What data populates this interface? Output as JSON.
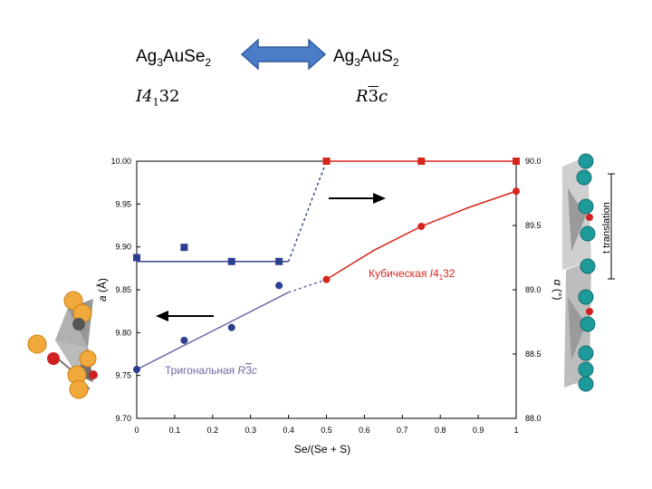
{
  "header": {
    "left_formula": {
      "base": "Ag",
      "sub1": "3",
      "mid": "AuSe",
      "sub2": "2"
    },
    "right_formula": {
      "base": "Ag",
      "sub1": "3",
      "mid": "AuS",
      "sub2": "2"
    },
    "left_spacegroup": {
      "pre": "I4",
      "sub": "1",
      "post": "32"
    },
    "right_spacegroup": {
      "pre": "R",
      "bar": "3",
      "post": "c"
    },
    "arrow_color": "#4a7cc7"
  },
  "structure": {
    "translation_label": "t translation"
  },
  "chart_data": {
    "type": "scatter",
    "xlabel": "Se/(Se + S)",
    "ylabel_left": {
      "italic": "a",
      "rest": " (Å)"
    },
    "ylabel_right": {
      "italic": "α",
      "rest": " (°)"
    },
    "xlim": [
      0,
      1
    ],
    "ylim_left": [
      9.7,
      10.0
    ],
    "ylim_right": [
      88.0,
      90.0
    ],
    "xticks": [
      "0",
      "0.1",
      "0.2",
      "0.3",
      "0.4",
      "0.5",
      "0.6",
      "0.7",
      "0.8",
      "0.9",
      "1"
    ],
    "yticks_left": [
      "9.70",
      "9.75",
      "9.80",
      "9.85",
      "9.90",
      "9.95",
      "10.00"
    ],
    "yticks_right": [
      "88.0",
      "88.5",
      "89.0",
      "89.5",
      "90.0"
    ],
    "annotations": {
      "cubic": {
        "pre": "Кубическая ",
        "italic": "I",
        "mid": "4",
        "sub": "1",
        "post": "32"
      },
      "trigonal": {
        "pre": "Тригональная ",
        "italic": "R",
        "bar": "3",
        "post": "c"
      }
    },
    "series": [
      {
        "axis": "left",
        "color": "#2c3e8f",
        "marker": "circle",
        "x": [
          0,
          0.125,
          0.25,
          0.375
        ],
        "y": [
          9.757,
          9.791,
          9.806,
          9.855
        ]
      },
      {
        "axis": "right",
        "color": "#2c3e8f",
        "marker": "square",
        "x": [
          0,
          0.125,
          0.25,
          0.375
        ],
        "y": [
          89.25,
          89.33,
          89.22,
          89.22
        ]
      },
      {
        "axis": "left",
        "color": "#d7261e",
        "marker": "circle",
        "x": [
          0.5,
          0.75,
          1.0
        ],
        "y": [
          9.862,
          9.924,
          9.965
        ]
      },
      {
        "axis": "right",
        "color": "#d7261e",
        "marker": "square",
        "x": [
          0.5,
          0.75,
          1.0
        ],
        "y": [
          90.0,
          90.0,
          90.0
        ]
      }
    ],
    "fit_lines": [
      {
        "axis": "left",
        "color": "#6d6aa6",
        "style": "solid",
        "x": [
          0,
          0.4
        ],
        "y": [
          9.757,
          9.847
        ]
      },
      {
        "axis": "left",
        "color": "#6d6aa6",
        "style": "dashed",
        "x": [
          0.4,
          0.5
        ],
        "y": [
          9.847,
          9.862
        ]
      },
      {
        "axis": "left",
        "color": "#d7261e",
        "style": "solid",
        "x": [
          0.5,
          0.625,
          0.75,
          0.875,
          1.0
        ],
        "y": [
          9.862,
          9.896,
          9.924,
          9.946,
          9.965
        ]
      },
      {
        "axis": "right",
        "color": "#3a4a8a",
        "style": "solid",
        "x": [
          0,
          0.4
        ],
        "y": [
          89.22,
          89.22
        ]
      },
      {
        "axis": "right",
        "color": "#3a4a8a",
        "style": "dashed",
        "x": [
          0.4,
          0.5
        ],
        "y": [
          89.22,
          90.0
        ]
      },
      {
        "axis": "right",
        "color": "#d7261e",
        "style": "solid",
        "x": [
          0.5,
          1.0
        ],
        "y": [
          90.0,
          90.0
        ]
      }
    ]
  }
}
